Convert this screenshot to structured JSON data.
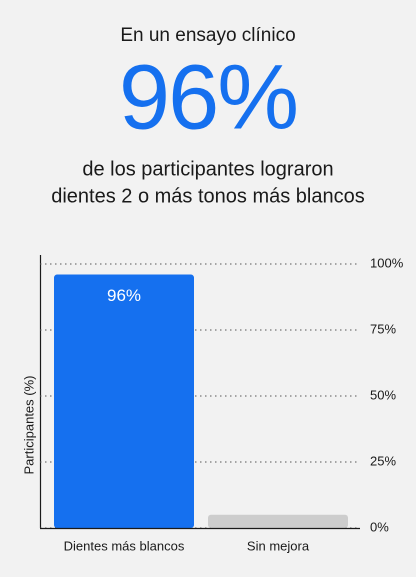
{
  "header": {
    "intro": "En un ensayo clínico",
    "stat": "96%",
    "description": [
      "de los participantes lograron",
      "dientes 2 o más tonos más blancos"
    ]
  },
  "chart_data": {
    "type": "bar",
    "y_label": "Participantes (%)",
    "categories": [
      "Dientes más blancos",
      "Sin mejora"
    ],
    "values": [
      96,
      5
    ],
    "value_labels": [
      "96%",
      null
    ],
    "colors": [
      "#1570ef",
      "#cdcdcd"
    ],
    "ylim": [
      0,
      100
    ],
    "yticks": [
      {
        "value": 0,
        "label": "0%"
      },
      {
        "value": 25,
        "label": "25%"
      },
      {
        "value": 50,
        "label": "50%"
      },
      {
        "value": 75,
        "label": "75%"
      },
      {
        "value": 100,
        "label": "100%"
      }
    ],
    "grid": true
  }
}
